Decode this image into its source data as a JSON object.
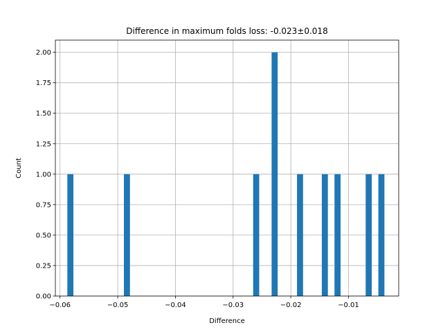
{
  "chart_data": {
    "type": "bar",
    "title": "Difference in maximum folds loss: -0.023±0.018",
    "xlabel": "Difference",
    "ylabel": "Count",
    "xlim": [
      -0.0608,
      -0.0013
    ],
    "ylim": [
      0,
      2.1
    ],
    "grid": true,
    "bar_color": "#1f77b4",
    "bar_width": 0.00105,
    "x": [
      -0.0582,
      -0.0484,
      -0.026,
      -0.0228,
      -0.0184,
      -0.0141,
      -0.0119,
      -0.0065,
      -0.0043
    ],
    "values": [
      1,
      1,
      1,
      2,
      1,
      1,
      1,
      1,
      1
    ],
    "xticks": [
      {
        "value": -0.06,
        "label": "−0.06"
      },
      {
        "value": -0.05,
        "label": "−0.05"
      },
      {
        "value": -0.04,
        "label": "−0.04"
      },
      {
        "value": -0.03,
        "label": "−0.03"
      },
      {
        "value": -0.02,
        "label": "−0.02"
      },
      {
        "value": -0.01,
        "label": "−0.01"
      }
    ],
    "yticks": [
      {
        "value": 0.0,
        "label": "0.00"
      },
      {
        "value": 0.25,
        "label": "0.25"
      },
      {
        "value": 0.5,
        "label": "0.50"
      },
      {
        "value": 0.75,
        "label": "0.75"
      },
      {
        "value": 1.0,
        "label": "1.00"
      },
      {
        "value": 1.25,
        "label": "1.25"
      },
      {
        "value": 1.5,
        "label": "1.50"
      },
      {
        "value": 1.75,
        "label": "1.75"
      },
      {
        "value": 2.0,
        "label": "2.00"
      }
    ]
  }
}
